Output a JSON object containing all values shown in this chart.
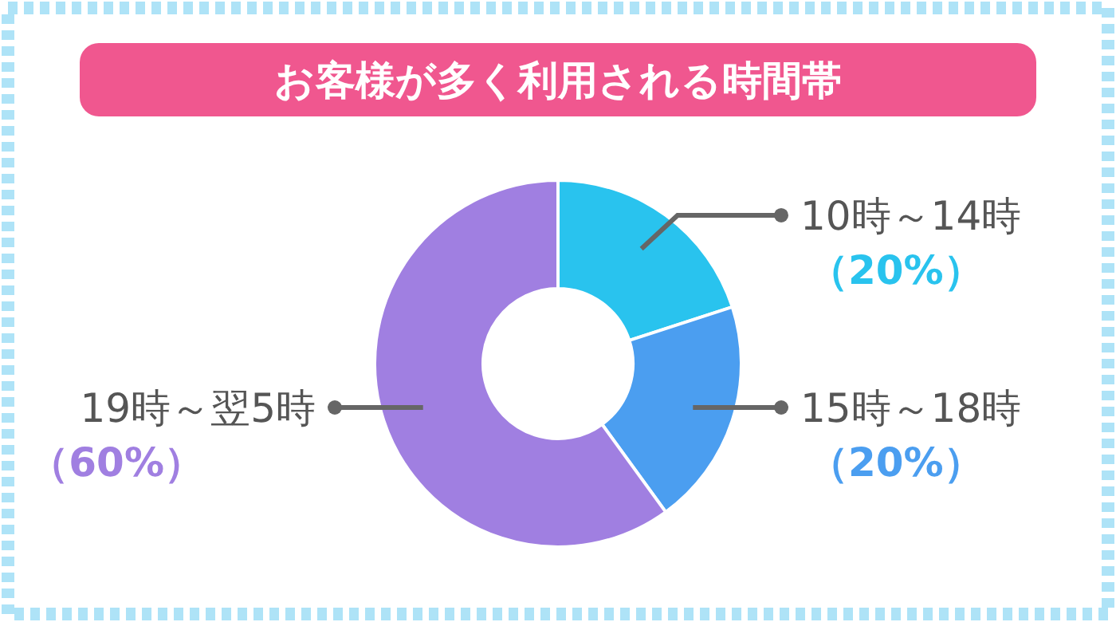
{
  "chart_data": {
    "type": "donut",
    "title": "お客様が多く利用される時間帯",
    "categories": [
      "10時～14時",
      "15時～18時",
      "19時～翌5時"
    ],
    "values": [
      20,
      20,
      60
    ],
    "colors": [
      "#29c3ee",
      "#4b9ef0",
      "#a07fe1"
    ],
    "value_labels": [
      "（20%）",
      "（20%）",
      "（60%）"
    ]
  }
}
